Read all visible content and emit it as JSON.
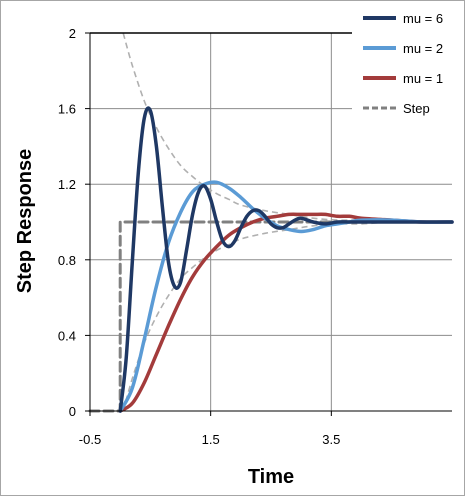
{
  "chart_data": {
    "type": "line",
    "xlabel": "Time",
    "ylabel": "Step Response",
    "xlim": [
      -0.5,
      5.5
    ],
    "ylim": [
      0,
      2
    ],
    "x_ticks": [
      -0.5,
      1.5,
      3.5
    ],
    "x_tick_labels": [
      "-0.5",
      "1.5",
      "3.5"
    ],
    "y_ticks": [
      0,
      0.4,
      0.8,
      1.2,
      1.6,
      2
    ],
    "y_tick_labels": [
      "0",
      "0.4",
      "0.8",
      "1.2",
      "1.6",
      "2"
    ],
    "grid": true,
    "legend_position": "top-right",
    "series": [
      {
        "name": "mu = 6",
        "color": "#1f3864",
        "style": "solid",
        "x": [
          0,
          0.1,
          0.2,
          0.3,
          0.4,
          0.5,
          0.6,
          0.7,
          0.8,
          0.9,
          1.0,
          1.1,
          1.2,
          1.3,
          1.4,
          1.5,
          1.6,
          1.7,
          1.8,
          1.9,
          2.0,
          2.1,
          2.2,
          2.3,
          2.4,
          2.5,
          2.6,
          2.7,
          2.8,
          2.9,
          3.0,
          3.2,
          3.4,
          3.6,
          3.8,
          4.0,
          4.5,
          5.0,
          5.5
        ],
        "y": [
          0,
          0.28,
          0.78,
          1.26,
          1.55,
          1.59,
          1.4,
          1.08,
          0.79,
          0.66,
          0.68,
          0.85,
          1.04,
          1.16,
          1.19,
          1.12,
          1.0,
          0.9,
          0.87,
          0.9,
          0.97,
          1.03,
          1.06,
          1.06,
          1.03,
          0.99,
          0.97,
          0.97,
          0.99,
          1.01,
          1.02,
          1.0,
          0.99,
          1.0,
          1.0,
          1.0,
          1.0,
          1.0,
          1.0
        ]
      },
      {
        "name": "mu = 2",
        "color": "#5b9bd5",
        "style": "solid",
        "x": [
          0,
          0.2,
          0.4,
          0.6,
          0.8,
          1.0,
          1.2,
          1.4,
          1.6,
          1.8,
          2.0,
          2.2,
          2.4,
          2.6,
          2.8,
          3.0,
          3.2,
          3.4,
          3.6,
          3.8,
          4.0,
          4.5,
          5.0,
          5.5
        ],
        "y": [
          0,
          0.12,
          0.38,
          0.66,
          0.89,
          1.05,
          1.16,
          1.2,
          1.21,
          1.18,
          1.13,
          1.07,
          1.02,
          0.98,
          0.96,
          0.95,
          0.96,
          0.98,
          0.99,
          1.0,
          1.01,
          1.01,
          1.0,
          1.0
        ]
      },
      {
        "name": "mu = 1",
        "color": "#a33b3b",
        "style": "solid",
        "x": [
          0,
          0.2,
          0.4,
          0.6,
          0.8,
          1.0,
          1.2,
          1.4,
          1.6,
          1.8,
          2.0,
          2.2,
          2.4,
          2.6,
          2.8,
          3.0,
          3.2,
          3.4,
          3.6,
          3.8,
          4.0,
          4.5,
          5.0,
          5.5
        ],
        "y": [
          0,
          0.04,
          0.15,
          0.3,
          0.45,
          0.59,
          0.71,
          0.8,
          0.87,
          0.93,
          0.97,
          1.0,
          1.02,
          1.03,
          1.04,
          1.04,
          1.04,
          1.04,
          1.03,
          1.03,
          1.02,
          1.01,
          1.0,
          1.0
        ]
      },
      {
        "name": "Step",
        "color": "#808080",
        "style": "dashed",
        "x": [
          -0.5,
          0,
          0,
          5.5
        ],
        "y": [
          0,
          0,
          1,
          1
        ]
      }
    ],
    "envelopes": [
      {
        "color": "#b0b0b0",
        "style": "dashed",
        "x": [
          0.05,
          0.2,
          0.4,
          0.6,
          0.8,
          1.0,
          1.2,
          1.4,
          1.6,
          1.8,
          2.0,
          2.4,
          2.8,
          3.2,
          3.6,
          4.0,
          4.5,
          5.0,
          5.5
        ],
        "y": [
          2.0,
          1.83,
          1.64,
          1.5,
          1.39,
          1.3,
          1.24,
          1.19,
          1.15,
          1.12,
          1.09,
          1.06,
          1.04,
          1.02,
          1.01,
          1.01,
          1.0,
          1.0,
          1.0
        ]
      },
      {
        "color": "#b0b0b0",
        "style": "dashed",
        "x": [
          0.05,
          0.2,
          0.4,
          0.6,
          0.8,
          1.0,
          1.2,
          1.4,
          1.6,
          1.8,
          2.0,
          2.4,
          2.8,
          3.2,
          3.6,
          4.0,
          4.5,
          5.0,
          5.5
        ],
        "y": [
          0.0,
          0.17,
          0.36,
          0.5,
          0.61,
          0.7,
          0.76,
          0.81,
          0.85,
          0.88,
          0.91,
          0.94,
          0.96,
          0.98,
          0.99,
          0.99,
          1.0,
          1.0,
          1.0
        ]
      }
    ]
  }
}
